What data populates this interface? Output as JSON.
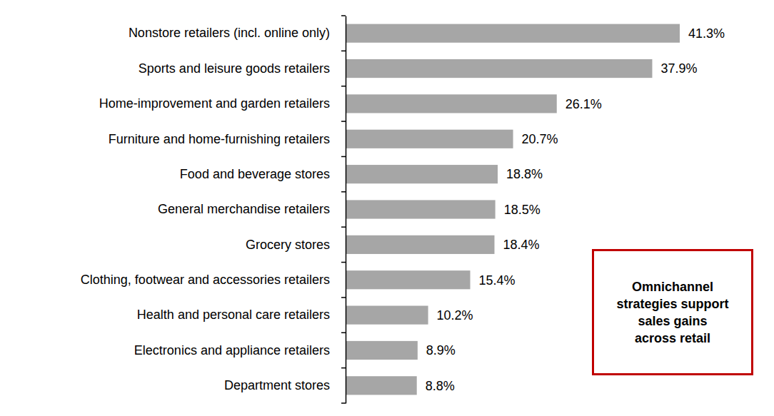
{
  "chart_data": {
    "type": "bar",
    "orientation": "horizontal",
    "categories": [
      "Nonstore retailers (incl. online only)",
      "Sports and leisure goods retailers",
      "Home-improvement and garden retailers",
      "Furniture and home-furnishing retailers",
      "Food and beverage stores",
      "General merchandise retailers",
      "Grocery stores",
      "Clothing, footwear and accessories retailers",
      "Health and personal care retailers",
      "Electronics and appliance retailers",
      "Department stores"
    ],
    "values": [
      41.3,
      37.9,
      26.1,
      20.7,
      18.8,
      18.5,
      18.4,
      15.4,
      10.2,
      8.9,
      8.8
    ],
    "value_labels": [
      "41.3%",
      "37.9%",
      "26.1%",
      "20.7%",
      "18.8%",
      "18.5%",
      "18.4%",
      "15.4%",
      "10.2%",
      "8.9%",
      "8.8%"
    ],
    "color": "#A6A6A6",
    "data_labels": true,
    "tick_labels": "y",
    "grid": false,
    "annotation": "Omnichannel strategies support sales gains across retail"
  }
}
